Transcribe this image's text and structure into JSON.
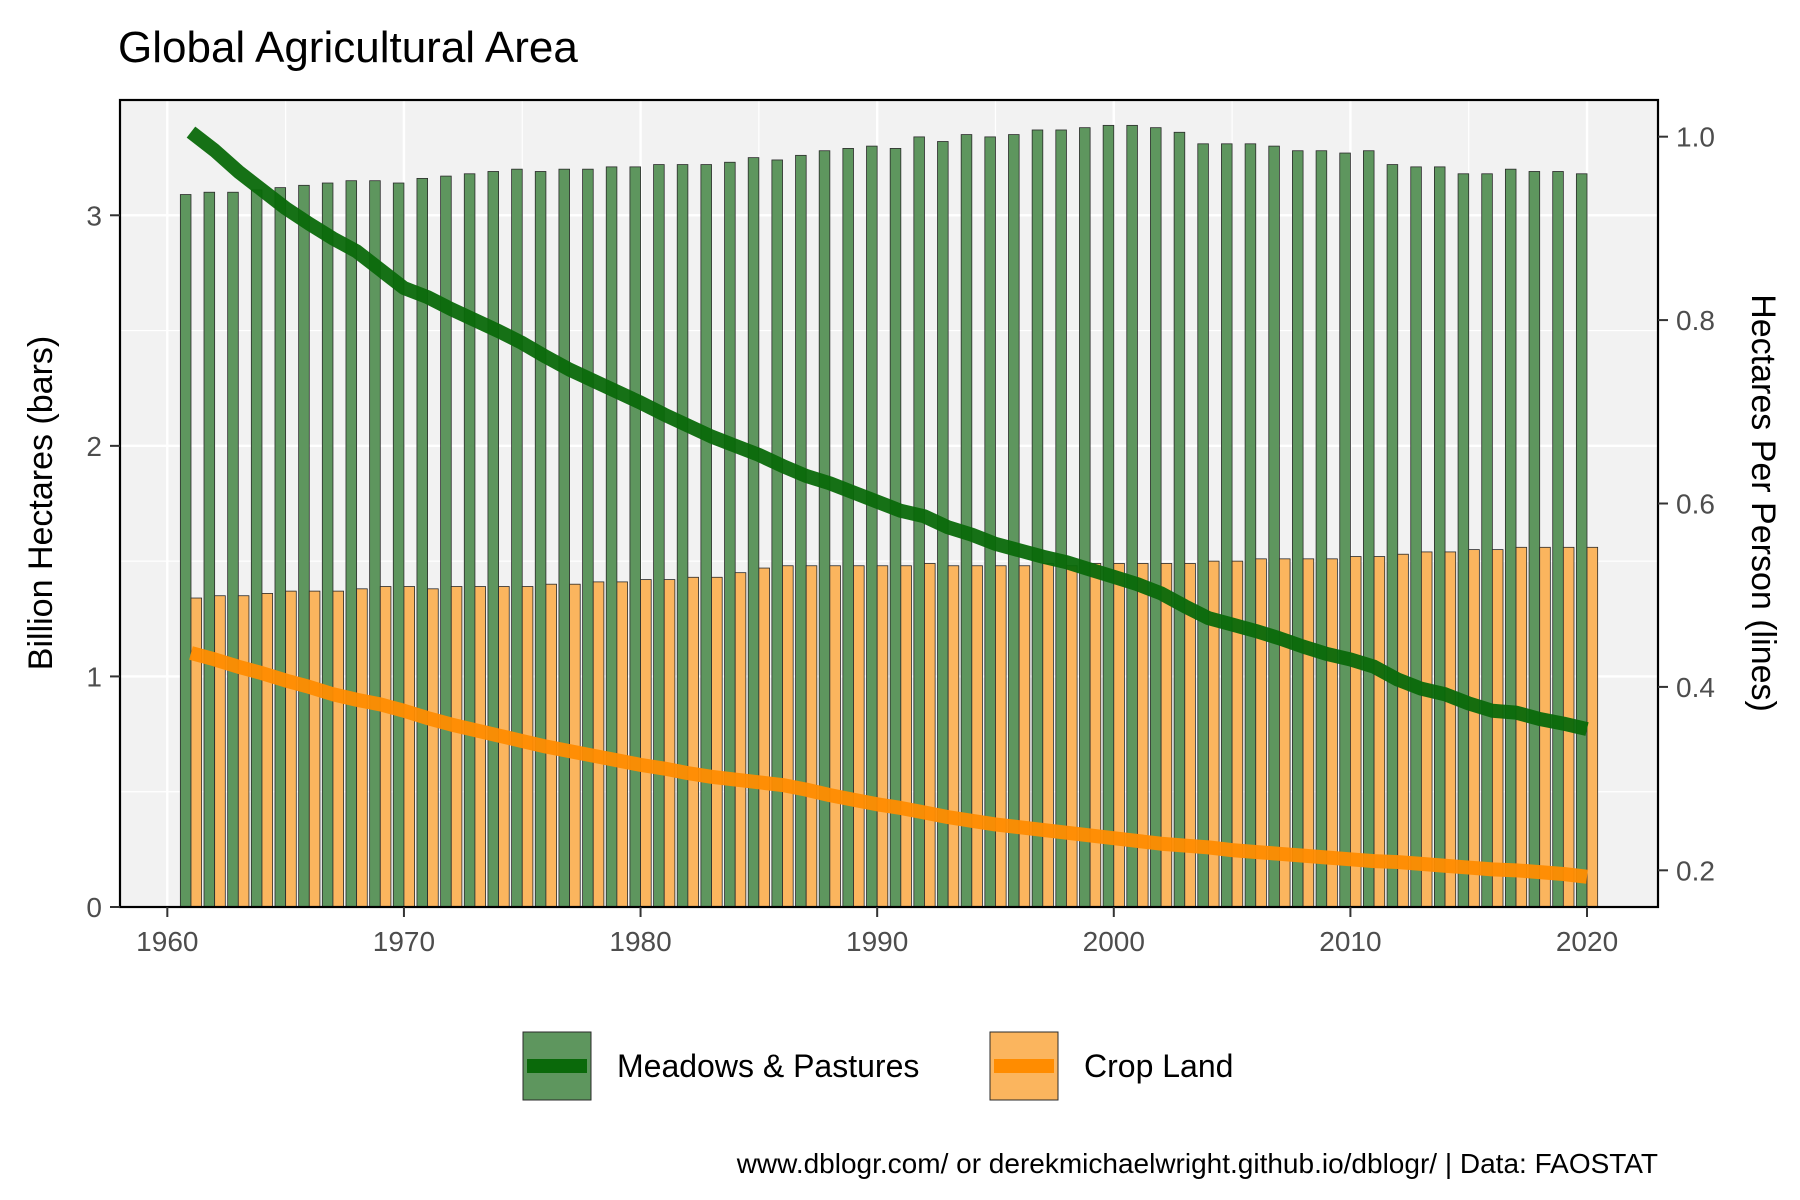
{
  "chart_data": {
    "type": "bar",
    "title": "Global Agricultural Area",
    "caption": "www.dblogr.com/ or derekmichaelwright.github.io/dblogr/ | Data: FAOSTAT",
    "ylabel": "Billion Hectares (bars)",
    "y2label": "Hectares Per Person (lines)",
    "xlim": [
      1958,
      2023
    ],
    "ylim": [
      0,
      3.5
    ],
    "y2lim": [
      0.2,
      1.0
    ],
    "y2_display": [
      0.16,
      1.04
    ],
    "xticks": [
      1960,
      1970,
      1980,
      1990,
      2000,
      2010,
      2020
    ],
    "xtick_labels": [
      "1960",
      "1970",
      "1980",
      "1990",
      "2000",
      "2010",
      "2020"
    ],
    "yticks": [
      0,
      1,
      2,
      3
    ],
    "ytick_labels": [
      "0",
      "1",
      "2",
      "3"
    ],
    "y2ticks": [
      0.2,
      0.4,
      0.6,
      0.8,
      1.0
    ],
    "y2tick_labels": [
      "0.2",
      "0.4",
      "0.6",
      "0.8",
      "1.0"
    ],
    "grid": true,
    "legend_position": "bottom",
    "legend": [
      {
        "label": "Meadows & Pastures",
        "bar_color": "#5e965e",
        "line_color": "#0a690a"
      },
      {
        "label": "Crop Land",
        "bar_color": "#fbb55e",
        "line_color": "#ff8c00"
      }
    ],
    "x": [
      1961,
      1962,
      1963,
      1964,
      1965,
      1966,
      1967,
      1968,
      1969,
      1970,
      1971,
      1972,
      1973,
      1974,
      1975,
      1976,
      1977,
      1978,
      1979,
      1980,
      1981,
      1982,
      1983,
      1984,
      1985,
      1986,
      1987,
      1988,
      1989,
      1990,
      1991,
      1992,
      1993,
      1994,
      1995,
      1996,
      1997,
      1998,
      1999,
      2000,
      2001,
      2002,
      2003,
      2004,
      2005,
      2006,
      2007,
      2008,
      2009,
      2010,
      2011,
      2012,
      2013,
      2014,
      2015,
      2016,
      2017,
      2018,
      2019,
      2020
    ],
    "bar_series": [
      {
        "name": "Meadows & Pastures",
        "color": "#5e965e",
        "values": [
          3.09,
          3.1,
          3.1,
          3.11,
          3.12,
          3.13,
          3.14,
          3.15,
          3.15,
          3.14,
          3.16,
          3.17,
          3.18,
          3.19,
          3.2,
          3.19,
          3.2,
          3.2,
          3.21,
          3.21,
          3.22,
          3.22,
          3.22,
          3.23,
          3.25,
          3.24,
          3.26,
          3.28,
          3.29,
          3.3,
          3.29,
          3.34,
          3.32,
          3.35,
          3.34,
          3.35,
          3.37,
          3.37,
          3.38,
          3.39,
          3.39,
          3.38,
          3.36,
          3.31,
          3.31,
          3.31,
          3.3,
          3.28,
          3.28,
          3.27,
          3.28,
          3.22,
          3.21,
          3.21,
          3.18,
          3.18,
          3.2,
          3.19,
          3.19,
          3.18
        ]
      },
      {
        "name": "Crop Land",
        "color": "#fbb55e",
        "values": [
          1.34,
          1.35,
          1.35,
          1.36,
          1.37,
          1.37,
          1.37,
          1.38,
          1.39,
          1.39,
          1.38,
          1.39,
          1.39,
          1.39,
          1.39,
          1.4,
          1.4,
          1.41,
          1.41,
          1.42,
          1.42,
          1.43,
          1.43,
          1.45,
          1.47,
          1.48,
          1.48,
          1.48,
          1.48,
          1.48,
          1.48,
          1.49,
          1.48,
          1.48,
          1.48,
          1.48,
          1.49,
          1.48,
          1.49,
          1.49,
          1.49,
          1.49,
          1.49,
          1.5,
          1.5,
          1.51,
          1.51,
          1.51,
          1.51,
          1.52,
          1.52,
          1.53,
          1.54,
          1.54,
          1.55,
          1.55,
          1.56,
          1.56,
          1.56,
          1.56
        ]
      }
    ],
    "line_series": [
      {
        "name": "Meadows & Pastures",
        "color": "#0a690a",
        "values": [
          1.005,
          0.985,
          0.962,
          0.942,
          0.922,
          0.905,
          0.889,
          0.875,
          0.855,
          0.835,
          0.825,
          0.812,
          0.8,
          0.788,
          0.775,
          0.76,
          0.746,
          0.734,
          0.722,
          0.71,
          0.697,
          0.685,
          0.673,
          0.663,
          0.653,
          0.641,
          0.63,
          0.622,
          0.612,
          0.602,
          0.592,
          0.586,
          0.574,
          0.566,
          0.556,
          0.549,
          0.542,
          0.536,
          0.528,
          0.52,
          0.512,
          0.502,
          0.488,
          0.475,
          0.468,
          0.461,
          0.453,
          0.444,
          0.436,
          0.43,
          0.422,
          0.408,
          0.398,
          0.392,
          0.382,
          0.374,
          0.372,
          0.365,
          0.36,
          0.354
        ]
      },
      {
        "name": "Crop Land",
        "color": "#ff8c00",
        "values": [
          0.437,
          0.43,
          0.422,
          0.415,
          0.407,
          0.4,
          0.392,
          0.386,
          0.381,
          0.374,
          0.366,
          0.359,
          0.353,
          0.347,
          0.341,
          0.335,
          0.33,
          0.325,
          0.32,
          0.315,
          0.311,
          0.306,
          0.302,
          0.299,
          0.296,
          0.293,
          0.288,
          0.282,
          0.277,
          0.272,
          0.268,
          0.263,
          0.258,
          0.254,
          0.25,
          0.247,
          0.244,
          0.241,
          0.238,
          0.235,
          0.232,
          0.229,
          0.227,
          0.225,
          0.222,
          0.22,
          0.218,
          0.216,
          0.214,
          0.212,
          0.21,
          0.209,
          0.207,
          0.205,
          0.203,
          0.201,
          0.2,
          0.198,
          0.196,
          0.193
        ]
      }
    ]
  }
}
